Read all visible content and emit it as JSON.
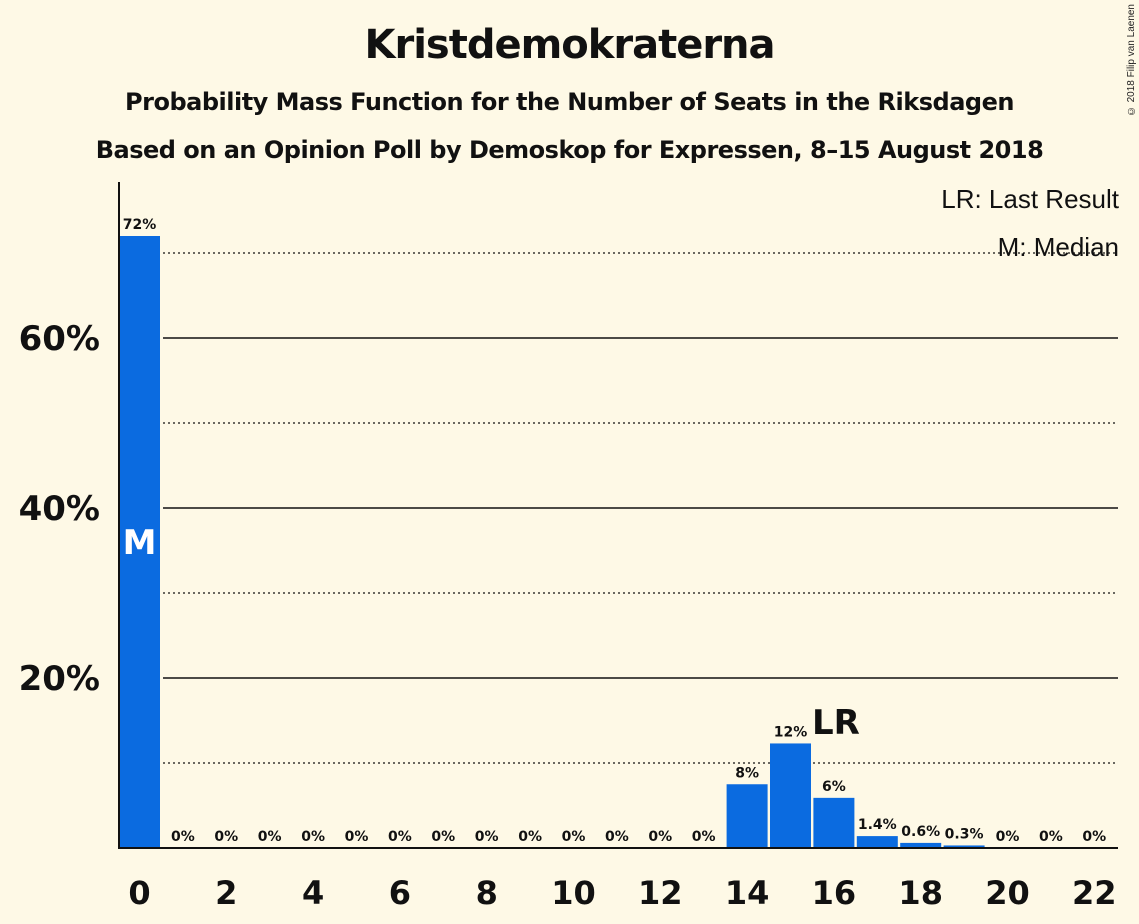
{
  "title": "Kristdemokraterna",
  "subtitle1": "Probability Mass Function for the Number of Seats in the Riksdagen",
  "subtitle2": "Based on an Opinion Poll by Demoskop for Expressen, 8–15 August 2018",
  "copyright": "© 2018 Filip van Laenen",
  "legend": {
    "last_result": "LR: Last Result",
    "median": "M: Median"
  },
  "colors": {
    "background": "#fef9e6",
    "bar": "#0b6be0",
    "text": "#111111"
  },
  "chart_data": {
    "type": "bar",
    "x": [
      0,
      1,
      2,
      3,
      4,
      5,
      6,
      7,
      8,
      9,
      10,
      11,
      12,
      13,
      14,
      15,
      16,
      17,
      18,
      19,
      20,
      21,
      22
    ],
    "values": [
      72,
      0,
      0,
      0,
      0,
      0,
      0,
      0,
      0,
      0,
      0,
      0,
      0,
      0,
      7.5,
      12.3,
      5.9,
      1.4,
      0.6,
      0.3,
      0,
      0,
      0
    ],
    "value_labels": [
      "72%",
      "0%",
      "0%",
      "0%",
      "0%",
      "0%",
      "0%",
      "0%",
      "0%",
      "0%",
      "0%",
      "0%",
      "0%",
      "0%",
      "8%",
      "12%",
      "6%",
      "1.4%",
      "0.6%",
      "0.3%",
      "0%",
      "0%",
      "0%"
    ],
    "xticks": [
      0,
      2,
      4,
      6,
      8,
      10,
      12,
      14,
      16,
      18,
      20,
      22
    ],
    "yticks": [
      20,
      40,
      60
    ],
    "ytick_labels": [
      "20%",
      "40%",
      "60%"
    ],
    "minor_grid": [
      10,
      30,
      50,
      70
    ],
    "ylim": [
      0,
      78
    ],
    "median_seat": 0,
    "median_label": "M",
    "last_result_seat": 16,
    "last_result_label": "LR",
    "legend_position": "top-right"
  }
}
